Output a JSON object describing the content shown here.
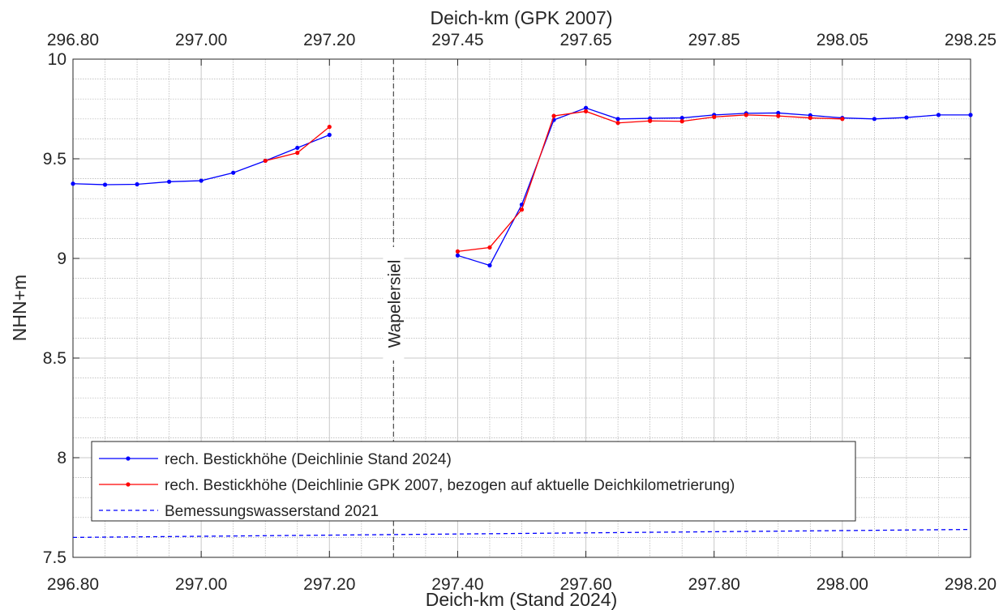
{
  "chart_data": {
    "type": "line",
    "title": "Deich-km (GPK 2007)",
    "x_label": "Deich-km (Stand 2024)",
    "y_label": "NHN+m",
    "xlim": [
      296.8,
      298.2
    ],
    "xticks": [
      {
        "value": 296.8,
        "label": "296.80"
      },
      {
        "value": 297.0,
        "label": "297.00"
      },
      {
        "value": 297.2,
        "label": "297.20"
      },
      {
        "value": 297.4,
        "label": "297.40"
      },
      {
        "value": 297.6,
        "label": "297.60"
      },
      {
        "value": 297.8,
        "label": "297.80"
      },
      {
        "value": 298.0,
        "label": "298.00"
      },
      {
        "value": 298.2,
        "label": "298.20"
      }
    ],
    "x2_tick_labels": [
      "296.80",
      "297.00",
      "297.20",
      "297.45",
      "297.65",
      "297.85",
      "298.05",
      "298.25"
    ],
    "ylim": [
      7.5,
      10
    ],
    "yticks": [
      7.5,
      8,
      8.5,
      9,
      9.5,
      10
    ],
    "grid": true,
    "legend": "lower left",
    "annotations": [
      {
        "text": "Wapelersiel",
        "x": 297.3
      }
    ],
    "series": [
      {
        "name": "rech. Bestickhöhe (Deichlinie Stand 2024)",
        "color": "#0000ff",
        "style": "solid",
        "markers": true,
        "x": [
          296.8,
          296.85,
          296.9,
          296.95,
          297.0,
          297.05,
          297.1,
          297.15,
          297.2,
          297.3,
          297.4,
          297.45,
          297.5,
          297.55,
          297.6,
          297.65,
          297.7,
          297.75,
          297.8,
          297.85,
          297.9,
          297.95,
          298.0,
          298.05,
          298.1,
          298.15,
          298.2
        ],
        "values": [
          9.375,
          9.37,
          9.372,
          9.385,
          9.39,
          9.43,
          9.49,
          9.555,
          9.62,
          null,
          9.015,
          8.965,
          9.27,
          9.695,
          9.755,
          9.7,
          9.703,
          9.705,
          9.72,
          9.728,
          9.73,
          9.718,
          9.705,
          9.7,
          9.707,
          9.72,
          9.72
        ]
      },
      {
        "name": "rech. Bestickhöhe (Deichlinie GPK 2007, bezogen auf aktuelle Deichkilometrierung)",
        "color": "#ff0000",
        "style": "solid",
        "markers": true,
        "x": [
          297.1,
          297.15,
          297.2,
          297.3,
          297.4,
          297.45,
          297.5,
          297.55,
          297.6,
          297.65,
          297.7,
          297.75,
          297.8,
          297.85,
          297.9,
          297.95,
          298.0
        ],
        "values": [
          9.49,
          9.53,
          9.66,
          null,
          9.035,
          9.055,
          9.245,
          9.715,
          9.738,
          9.68,
          9.69,
          9.688,
          9.71,
          9.72,
          9.715,
          9.705,
          9.7
        ]
      },
      {
        "name": "Bemessungswasserstand 2021",
        "color": "#0000ff",
        "style": "dashed",
        "markers": false,
        "x": [
          296.8,
          298.2
        ],
        "values": [
          7.6,
          7.64
        ]
      }
    ]
  }
}
